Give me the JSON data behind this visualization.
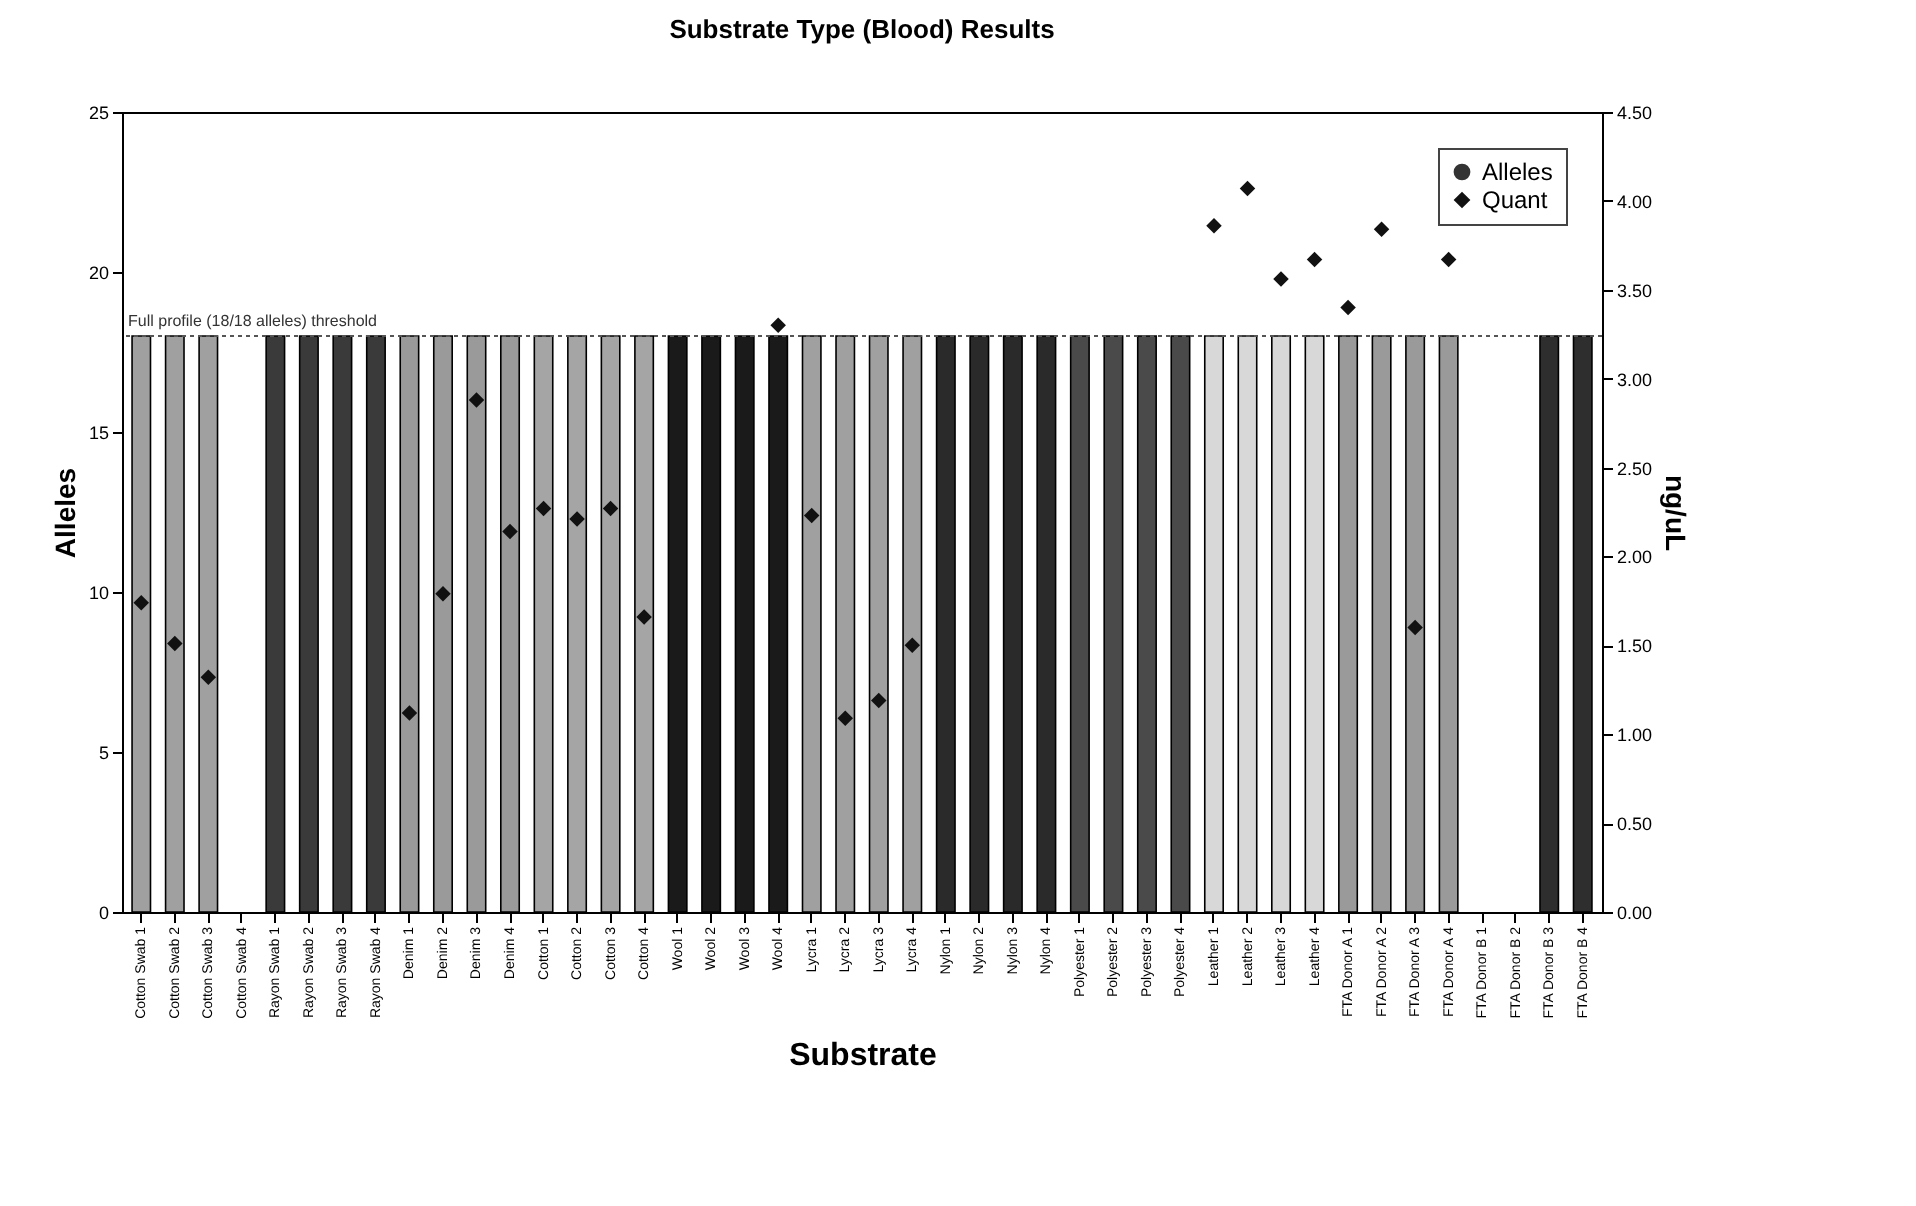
{
  "chart_data": {
    "type": "bar",
    "title": "Substrate Type (Blood) Results",
    "xlabel": "Substrate",
    "ylabel": "Alleles",
    "y2label": "ng/uL",
    "categories": [
      "Cotton Swab 1",
      "Cotton Swab 2",
      "Cotton Swab 3",
      "Cotton Swab 4",
      "Rayon Swab 1",
      "Rayon Swab 2",
      "Rayon Swab 3",
      "Rayon Swab 4",
      "Denim 1",
      "Denim 2",
      "Denim 3",
      "Denim 4",
      "Cotton 1",
      "Cotton 2",
      "Cotton 3",
      "Cotton 4",
      "Wool 1",
      "Wool 2",
      "Wool 3",
      "Wool 4",
      "Lycra 1",
      "Lycra 2",
      "Lycra 3",
      "Lycra 4",
      "Nylon 1",
      "Nylon 2",
      "Nylon 3",
      "Nylon 4",
      "Polyester 1",
      "Polyester 2",
      "Polyester 3",
      "Polyester 4",
      "Leather 1",
      "Leather 2",
      "Leather 3",
      "Leather 4",
      "FTA Donor A 1",
      "FTA Donor A 2",
      "FTA Donor A 3",
      "FTA Donor A 4",
      "FTA Donor B 1",
      "FTA Donor B 2",
      "FTA Donor B 3",
      "FTA Donor B 4"
    ],
    "series": [
      {
        "name": "Alleles",
        "color": "#333333",
        "colors": [
          "#a0a0a0",
          "#a0a0a0",
          "#a0a0a0",
          "#a0a0a0",
          "#3a3a3a",
          "#3a3a3a",
          "#3a3a3a",
          "#3a3a3a",
          "#9a9a9a",
          "#9a9a9a",
          "#9a9a9a",
          "#9a9a9a",
          "#a5a5a5",
          "#a5a5a5",
          "#a5a5a5",
          "#a5a5a5",
          "#1a1a1a",
          "#1a1a1a",
          "#1a1a1a",
          "#1a1a1a",
          "#a0a0a0",
          "#a0a0a0",
          "#a0a0a0",
          "#a0a0a0",
          "#2a2a2a",
          "#2a2a2a",
          "#2a2a2a",
          "#2a2a2a",
          "#4a4a4a",
          "#4a4a4a",
          "#4a4a4a",
          "#4a4a4a",
          "#d8d8d8",
          "#d8d8d8",
          "#d8d8d8",
          "#d8d8d8",
          "#9a9a9a",
          "#9a9a9a",
          "#9a9a9a",
          "#9a9a9a",
          "#2e2e2e",
          "#2e2e2e",
          "#2e2e2e",
          "#2e2e2e"
        ],
        "values": [
          18,
          18,
          18,
          0,
          18,
          18,
          18,
          18,
          18,
          18,
          18,
          18,
          18,
          18,
          18,
          18,
          18,
          18,
          18,
          18,
          18,
          18,
          18,
          18,
          18,
          18,
          18,
          18,
          18,
          18,
          18,
          18,
          18,
          18,
          18,
          18,
          18,
          18,
          18,
          18,
          0,
          0,
          18,
          18
        ]
      },
      {
        "name": "Quant",
        "type": "scatter",
        "axis": "y2",
        "marker": "diamond",
        "color": "#111111",
        "values": [
          1.74,
          1.51,
          1.32,
          null,
          null,
          null,
          null,
          null,
          1.12,
          1.79,
          2.88,
          2.14,
          2.27,
          2.21,
          2.27,
          1.66,
          null,
          null,
          null,
          3.3,
          2.23,
          1.09,
          1.19,
          1.5,
          null,
          null,
          null,
          null,
          null,
          null,
          null,
          null,
          3.86,
          4.07,
          3.56,
          3.67,
          3.4,
          3.84,
          1.6,
          3.67,
          null,
          null,
          null,
          null
        ]
      }
    ],
    "ylim": [
      0,
      25
    ],
    "yticks": [
      0,
      5,
      10,
      15,
      20,
      25
    ],
    "y2lim": [
      0,
      4.5
    ],
    "y2ticks": [
      {
        "value": 0,
        "label": "0.00"
      },
      {
        "value": 0.5,
        "label": "0.50"
      },
      {
        "value": 1,
        "label": "1.00"
      },
      {
        "value": 1.5,
        "label": "1.50"
      },
      {
        "value": 2,
        "label": "2.00"
      },
      {
        "value": 2.5,
        "label": "2.50"
      },
      {
        "value": 3,
        "label": "3.00"
      },
      {
        "value": 3.5,
        "label": "3.50"
      },
      {
        "value": 4,
        "label": "4.00"
      },
      {
        "value": 4.5,
        "label": "4.50"
      }
    ],
    "ref_lines": [
      {
        "axis": "y",
        "value": 18,
        "label": "Full profile (18/18 alleles) threshold",
        "line_style": "dotted",
        "color": "#555555"
      }
    ],
    "legend": "top right"
  }
}
